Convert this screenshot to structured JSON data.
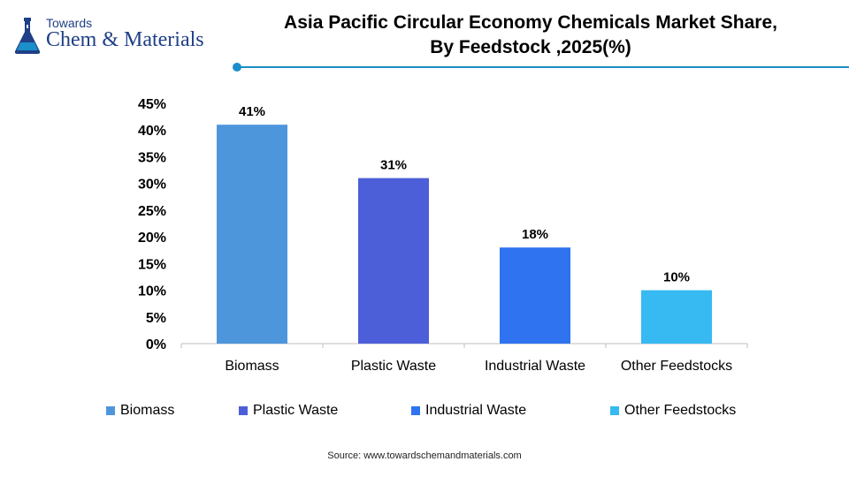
{
  "brand": {
    "top": "Towards",
    "main": "Chem & Materials"
  },
  "colors": {
    "brand_navy": "#1f3f86",
    "accent": "#1a8fc9"
  },
  "chart_data": {
    "type": "bar",
    "title_line1": "Asia Pacific Circular Economy Chemicals Market Share,",
    "title_line2": "By Feedstock ,2025(%)",
    "categories": [
      "Biomass",
      "Plastic Waste",
      "Industrial Waste",
      "Other Feedstocks"
    ],
    "values": [
      41,
      31,
      18,
      10
    ],
    "value_labels": [
      "41%",
      "31%",
      "18%",
      "10%"
    ],
    "bar_colors": [
      "#4e96dc",
      "#4c5fd8",
      "#2f73f0",
      "#37b9f2"
    ],
    "yticks": [
      "0%",
      "5%",
      "10%",
      "15%",
      "20%",
      "25%",
      "30%",
      "35%",
      "40%",
      "45%"
    ],
    "ylim": [
      0,
      45
    ],
    "grid": false,
    "legend_position": "bottom",
    "source": "Source:  www.towardschemandmaterials.com"
  }
}
